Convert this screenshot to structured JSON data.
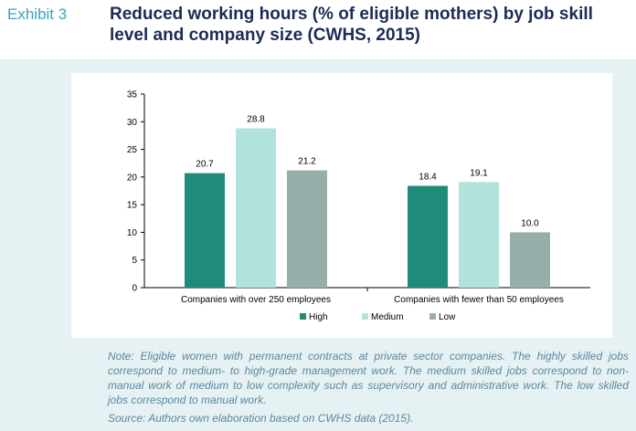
{
  "exhibit_label": "Exhibit 3",
  "title": "Reduced working hours (% of eligible mothers) by job skill level and company size (CWHS, 2015)",
  "note": "Note: Eligible women with permanent contracts at private sector companies. The highly skilled jobs correspond to medium- to high-grade management work. The medium skilled jobs correspond to non-manual work of medium to low complexity such as supervisory and administrative work. The low skilled jobs correspond to manual work.",
  "source": "Source: Authors own elaboration based on CWHS data (2015).",
  "chart_data": {
    "type": "bar",
    "categories": [
      "Companies with over 250 employees",
      "Companies with fewer than 50 employees"
    ],
    "series": [
      {
        "name": "High",
        "values": [
          20.7,
          18.4
        ],
        "color": "#1f8c7a"
      },
      {
        "name": "Medium",
        "values": [
          28.8,
          19.1
        ],
        "color": "#b2e2dc"
      },
      {
        "name": "Low",
        "values": [
          21.2,
          10.0
        ],
        "color": "#98aeaa"
      }
    ],
    "data_labels": [
      [
        "20.7",
        "18.4"
      ],
      [
        "28.8",
        "19.1"
      ],
      [
        "21.2",
        "10.0"
      ]
    ],
    "ylim": [
      0,
      35
    ],
    "yticks": [
      0,
      5,
      10,
      15,
      20,
      25,
      30,
      35
    ],
    "xlabel": "",
    "ylabel": "",
    "grid": false,
    "legend_position": "bottom"
  }
}
